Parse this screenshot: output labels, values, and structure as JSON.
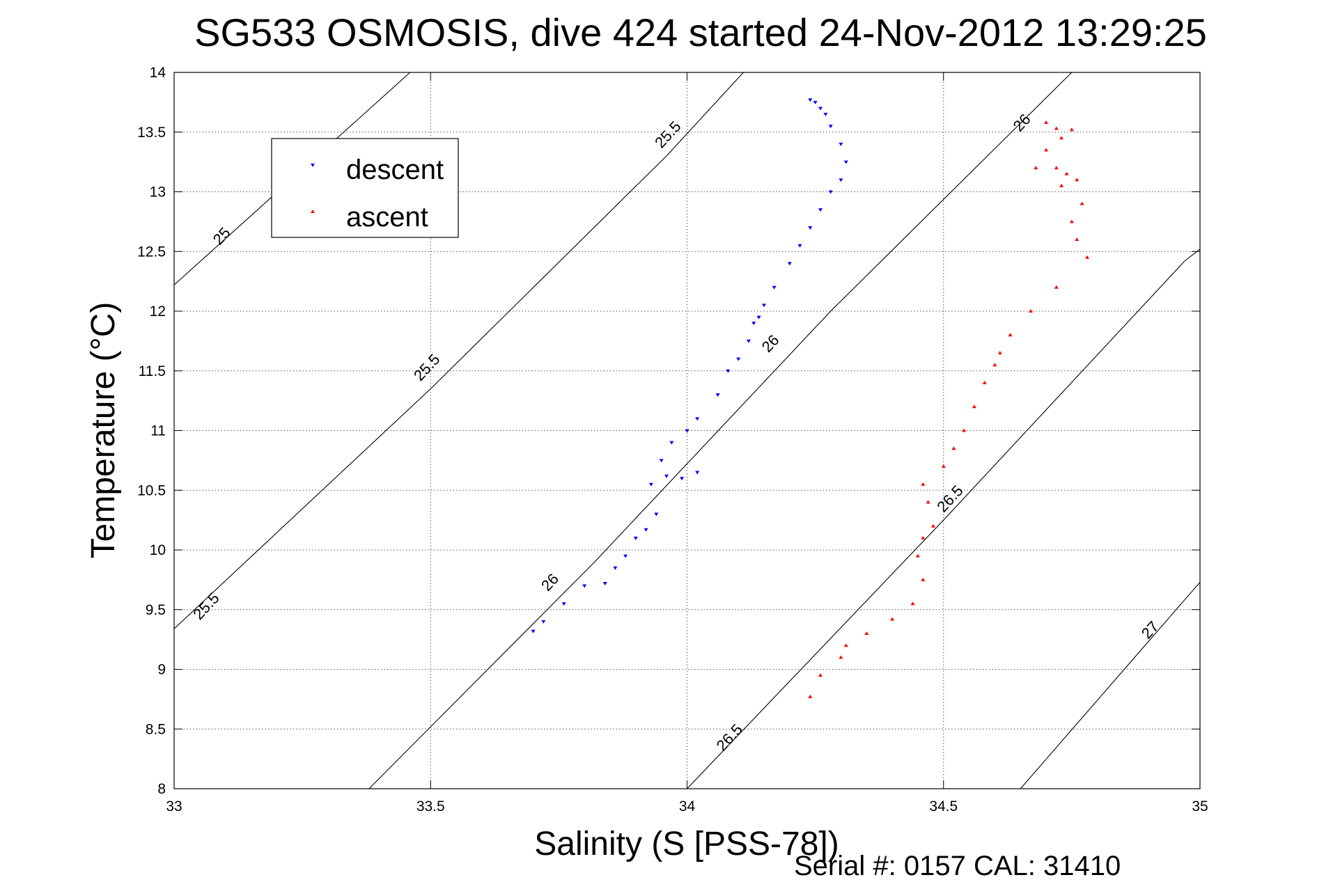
{
  "page_title": "SG533 OSMOSIS, dive 424 started 24-Nov-2012 13:29:25",
  "footer": "Serial #: 0157  CAL: 31410",
  "chart_data": {
    "type": "scatter",
    "title": "SG533 OSMOSIS, dive 424 started 24-Nov-2012 13:29:25",
    "xlabel": "Salinity (S [PSS-78])",
    "ylabel": "Temperature (°C)",
    "xlim": [
      33,
      35
    ],
    "ylim": [
      8,
      14
    ],
    "grid": true,
    "legend_position": "top-left",
    "x_ticks": [
      "33",
      "33.5",
      "34",
      "34.5",
      "35"
    ],
    "y_ticks": [
      "8",
      "8.5",
      "9",
      "9.5",
      "10",
      "10.5",
      "11",
      "11.5",
      "12",
      "12.5",
      "13",
      "13.5",
      "14"
    ],
    "series": [
      {
        "name": "descent",
        "color": "#0000ff",
        "marker": "triangle-down",
        "x": [
          33.7,
          33.72,
          33.76,
          33.8,
          33.84,
          33.86,
          33.88,
          33.9,
          33.92,
          33.94,
          33.93,
          33.96,
          33.99,
          34.02,
          33.95,
          33.97,
          34.0,
          34.02,
          34.06,
          34.08,
          34.1,
          34.12,
          34.13,
          34.15,
          34.14,
          34.17,
          34.2,
          34.22,
          34.24,
          34.26,
          34.28,
          34.3,
          34.31,
          34.3,
          34.28,
          34.27,
          34.26,
          34.25,
          34.24
        ],
        "y": [
          9.32,
          9.4,
          9.55,
          9.7,
          9.72,
          9.85,
          9.95,
          10.1,
          10.17,
          10.3,
          10.55,
          10.62,
          10.6,
          10.65,
          10.75,
          10.9,
          11.0,
          11.1,
          11.3,
          11.5,
          11.6,
          11.75,
          11.9,
          12.05,
          11.95,
          12.2,
          12.4,
          12.55,
          12.7,
          12.85,
          13.0,
          13.1,
          13.25,
          13.4,
          13.55,
          13.65,
          13.7,
          13.75,
          13.77
        ]
      },
      {
        "name": "ascent",
        "color": "#ff0000",
        "marker": "triangle-up",
        "x": [
          34.24,
          34.26,
          34.3,
          34.31,
          34.35,
          34.4,
          34.44,
          34.46,
          34.45,
          34.46,
          34.48,
          34.47,
          34.46,
          34.5,
          34.52,
          34.54,
          34.56,
          34.58,
          34.6,
          34.61,
          34.63,
          34.67,
          34.72,
          34.78,
          34.76,
          34.75,
          34.77,
          34.73,
          34.74,
          34.76,
          34.72,
          34.68,
          34.7,
          34.73,
          34.75,
          34.72,
          34.7
        ],
        "y": [
          8.77,
          8.95,
          9.1,
          9.2,
          9.3,
          9.42,
          9.55,
          9.75,
          9.95,
          10.1,
          10.2,
          10.4,
          10.55,
          10.7,
          10.85,
          11.0,
          11.2,
          11.4,
          11.55,
          11.65,
          11.8,
          12.0,
          12.2,
          12.45,
          12.6,
          12.75,
          12.9,
          13.05,
          13.15,
          13.1,
          13.2,
          13.2,
          13.35,
          13.45,
          13.52,
          13.53,
          13.58
        ]
      }
    ],
    "contours": [
      {
        "label": "25",
        "points": [
          [
            33.0,
            12.22
          ],
          [
            33.46,
            14.0
          ]
        ]
      },
      {
        "label": "25.5",
        "points": [
          [
            33.0,
            9.34
          ],
          [
            33.5,
            11.35
          ],
          [
            33.96,
            13.3
          ],
          [
            34.11,
            14.0
          ]
        ]
      },
      {
        "label": "26",
        "points": [
          [
            33.38,
            8.0
          ],
          [
            33.82,
            9.9
          ],
          [
            34.28,
            12.0
          ],
          [
            34.75,
            14.0
          ]
        ]
      },
      {
        "label": "26.5",
        "points": [
          [
            34.0,
            8.0
          ],
          [
            34.5,
            10.25
          ],
          [
            34.97,
            12.42
          ],
          [
            35.0,
            12.52
          ]
        ]
      },
      {
        "label": "27",
        "points": [
          [
            34.65,
            8.0
          ],
          [
            35.0,
            9.73
          ]
        ]
      }
    ],
    "contour_labels": [
      {
        "text": "25",
        "x": 33.1,
        "y": 12.6
      },
      {
        "text": "25.5",
        "x": 33.07,
        "y": 9.5
      },
      {
        "text": "25.5",
        "x": 33.5,
        "y": 11.5
      },
      {
        "text": "25.5",
        "x": 33.97,
        "y": 13.45
      },
      {
        "text": "26",
        "x": 33.74,
        "y": 9.7
      },
      {
        "text": "26",
        "x": 34.17,
        "y": 11.7
      },
      {
        "text": "26",
        "x": 34.66,
        "y": 13.55
      },
      {
        "text": "26.5",
        "x": 34.09,
        "y": 8.4
      },
      {
        "text": "26.5",
        "x": 34.52,
        "y": 10.4
      },
      {
        "text": "27",
        "x": 34.91,
        "y": 9.3
      }
    ]
  }
}
